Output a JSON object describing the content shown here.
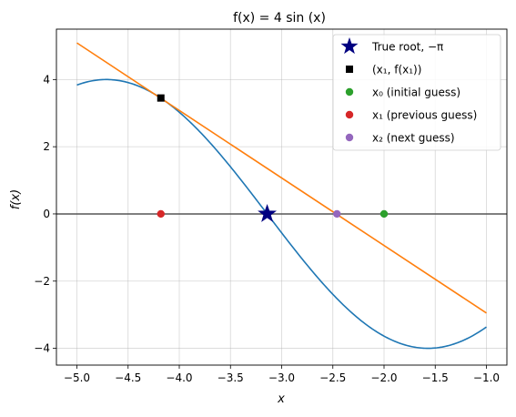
{
  "chart_data": {
    "type": "line",
    "title": "f(x) = 4 sin (x)",
    "xlabel": "x",
    "ylabel": "f(x)",
    "xlim": [
      -5.2,
      -0.8
    ],
    "ylim": [
      -4.5,
      5.5
    ],
    "x_ticks": [
      -5.0,
      -4.5,
      -4.0,
      -3.5,
      -3.0,
      -2.5,
      -2.0,
      -1.5,
      -1.0
    ],
    "x_tick_labels": [
      "−5.0",
      "−4.5",
      "−4.0",
      "−3.5",
      "−3.0",
      "−2.5",
      "−2.0",
      "−1.5",
      "−1.0"
    ],
    "y_ticks": [
      -4,
      -2,
      0,
      2,
      4
    ],
    "y_tick_labels": [
      "−4",
      "−2",
      "0",
      "2",
      "4"
    ],
    "grid": true,
    "legend_position": "top-right",
    "colors": {
      "curve": "#1f77b4",
      "tangent": "#ff7f0e",
      "zero_line": "#555555",
      "root": "#000080",
      "x0": "#2ca02c",
      "x1": "#d62728",
      "x2": "#9467bd",
      "tangent_point": "#000000"
    },
    "series": [
      {
        "kind": "function",
        "expr": "4*sin(x)",
        "x_range": [
          -5.0,
          -1.0
        ]
      },
      {
        "kind": "line",
        "points": [
          [
            -5.0,
            5.09
          ],
          [
            -1.0,
            -2.95
          ]
        ]
      },
      {
        "kind": "hline",
        "y": 0
      }
    ],
    "markers": [
      {
        "key": "root",
        "x": -3.14159,
        "y": 0,
        "shape": "star"
      },
      {
        "key": "tangent_point",
        "x": -4.18,
        "y": 3.45,
        "shape": "square"
      },
      {
        "key": "x0",
        "x": -2.0,
        "y": 0,
        "shape": "circle"
      },
      {
        "key": "x1",
        "x": -4.18,
        "y": 0,
        "shape": "circle"
      },
      {
        "key": "x2",
        "x": -2.46,
        "y": 0,
        "shape": "circle"
      }
    ],
    "legend": [
      {
        "key": "root",
        "label": "True root, −π"
      },
      {
        "key": "tangent_point",
        "label": "(x₁, f(x₁))"
      },
      {
        "key": "x0",
        "label": "x₀ (initial guess)"
      },
      {
        "key": "x1",
        "label": "x₁ (previous guess)"
      },
      {
        "key": "x2",
        "label": "x₂ (next guess)"
      }
    ]
  }
}
